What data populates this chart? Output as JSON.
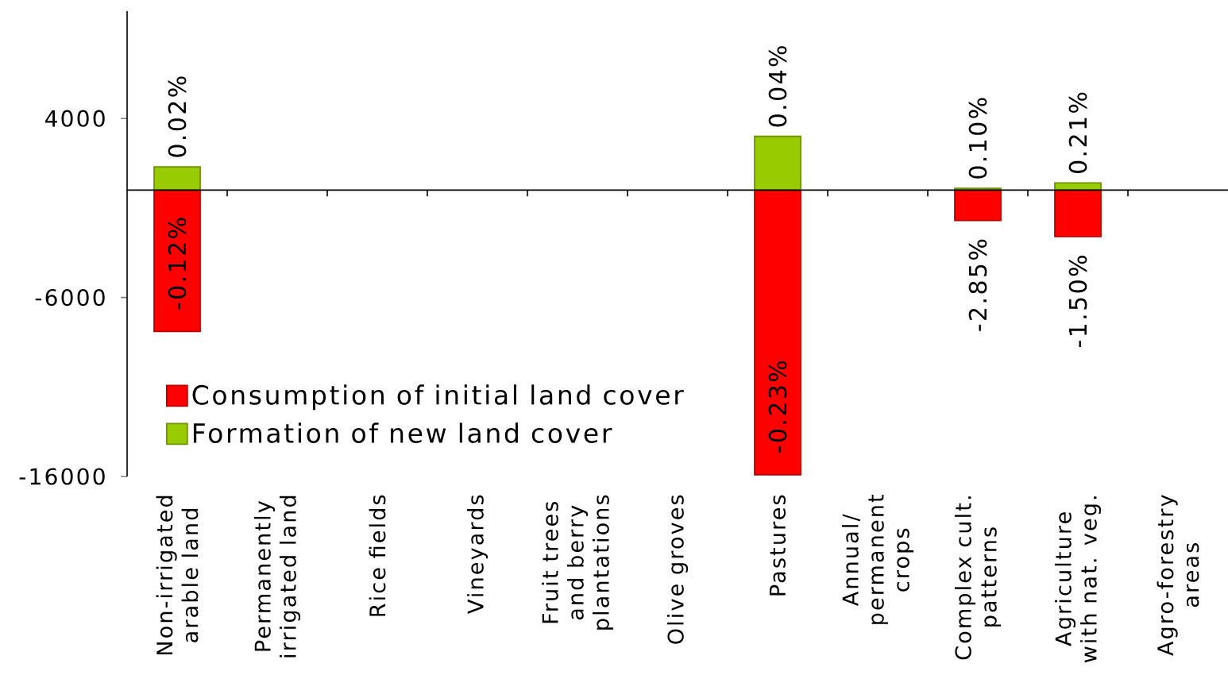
{
  "chart_data": {
    "type": "bar",
    "categories": [
      "Non-irrigated arable land",
      "Permanently irrigated land",
      "Rice fields",
      "Vineyards",
      "Fruit trees and berry plantations",
      "Olive groves",
      "Pastures",
      "Annual/ permanent crops",
      "Complex cult. patterns",
      "Agriculture with nat. veg.",
      "Agro-forestry areas"
    ],
    "ylim": [
      -16000,
      10000
    ],
    "yticks": [
      -16000,
      -6000,
      4000
    ],
    "legend": "bottom left",
    "series": [
      {
        "name": "Consumption of initial land cover",
        "color": "#ff0000",
        "values": [
          -7900,
          null,
          null,
          null,
          null,
          null,
          -15900,
          null,
          -1700,
          -2600,
          null
        ]
      },
      {
        "name": "Formation of new land cover",
        "color": "#99cc00",
        "values": [
          1300,
          null,
          null,
          null,
          null,
          null,
          3000,
          null,
          100,
          400,
          null
        ]
      }
    ],
    "annotations": [
      {
        "text": "0.02%",
        "x": "Non-irrigated arable land",
        "y": 1300
      },
      {
        "text": "-0.12%",
        "x": "Non-irrigated arable land",
        "y": -7900
      },
      {
        "text": "0.04%",
        "x": "Pastures",
        "y": 3000
      },
      {
        "text": "-0.23%",
        "x": "Pastures",
        "y": -15900
      },
      {
        "text": "0.10%",
        "x": "Complex cult. patterns",
        "y": 100
      },
      {
        "text": "-2.85%",
        "x": "Complex cult. patterns",
        "y": -1700
      },
      {
        "text": "0.21%",
        "x": "Agriculture with nat. veg.",
        "y": 400
      },
      {
        "text": "-1.50%",
        "x": "Agriculture with nat. veg.",
        "y": -2600
      }
    ]
  }
}
